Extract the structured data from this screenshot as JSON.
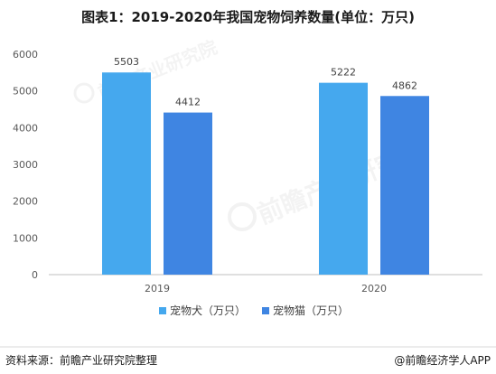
{
  "chart_data": {
    "type": "bar",
    "title": "图表1：2019-2020年我国宠物饲养数量(单位：万只)",
    "categories": [
      "2019",
      "2020"
    ],
    "series": [
      {
        "name": "宠物犬（万只）",
        "values": [
          5503,
          5222
        ],
        "color": "#45A8EE"
      },
      {
        "name": "宠物猫（万只）",
        "values": [
          4412,
          4862
        ],
        "color": "#3F85E2"
      }
    ],
    "ylim": [
      0,
      6000
    ],
    "yticks": [
      "0",
      "1000",
      "2000",
      "3000",
      "4000",
      "5000",
      "6000"
    ],
    "grid": false,
    "legend_position": "bottom"
  },
  "footer": {
    "source": "资料来源：前瞻产业研究院整理",
    "brand": "@前瞻经济学人APP"
  },
  "watermark": {
    "text": "前瞻产业研究院"
  }
}
